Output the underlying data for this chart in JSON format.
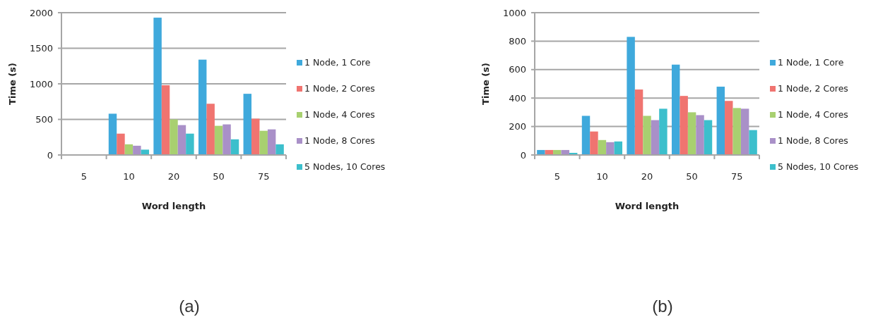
{
  "chart_data": [
    {
      "type": "bar",
      "categories": [
        "5",
        "10",
        "20",
        "50",
        "75"
      ],
      "xlabel": "Word length",
      "ylabel": "Time (s)",
      "ylim": [
        0,
        2000
      ],
      "yticks": [
        0,
        500,
        1000,
        1500,
        2000
      ],
      "grid": "y",
      "legend": "right",
      "annotations": [
        "(a)"
      ],
      "series": [
        {
          "name": "1 Node, 1 Core",
          "color": "#3fa9dc",
          "values": [
            0,
            580,
            1930,
            1340,
            860
          ]
        },
        {
          "name": "1 Node, 2 Cores",
          "color": "#f07470",
          "values": [
            0,
            300,
            980,
            720,
            510
          ]
        },
        {
          "name": "1 Node, 4 Cores",
          "color": "#a8d070",
          "values": [
            0,
            150,
            500,
            410,
            340
          ]
        },
        {
          "name": "1 Node, 8 Cores",
          "color": "#a990c8",
          "values": [
            0,
            130,
            420,
            430,
            360
          ]
        },
        {
          "name": "5 Nodes, 10 Cores",
          "color": "#3cbfcc",
          "values": [
            0,
            75,
            300,
            220,
            150
          ]
        }
      ]
    },
    {
      "type": "bar",
      "categories": [
        "5",
        "10",
        "20",
        "50",
        "75"
      ],
      "xlabel": "Word length",
      "ylabel": "Time (s)",
      "ylim": [
        0,
        1000
      ],
      "yticks": [
        0,
        200,
        400,
        600,
        800,
        1000
      ],
      "grid": "y",
      "legend": "right",
      "annotations": [
        "(b)"
      ],
      "series": [
        {
          "name": "1 Node, 1 Core",
          "color": "#3fa9dc",
          "values": [
            35,
            275,
            830,
            635,
            480
          ]
        },
        {
          "name": "1 Node, 2 Cores",
          "color": "#f07470",
          "values": [
            35,
            165,
            460,
            415,
            380
          ]
        },
        {
          "name": "1 Node, 4 Cores",
          "color": "#a8d070",
          "values": [
            35,
            105,
            275,
            300,
            330
          ]
        },
        {
          "name": "1 Node, 8 Cores",
          "color": "#a990c8",
          "values": [
            35,
            90,
            245,
            280,
            325
          ]
        },
        {
          "name": "5 Nodes, 10 Cores",
          "color": "#3cbfcc",
          "values": [
            15,
            95,
            325,
            245,
            175
          ]
        }
      ]
    }
  ]
}
